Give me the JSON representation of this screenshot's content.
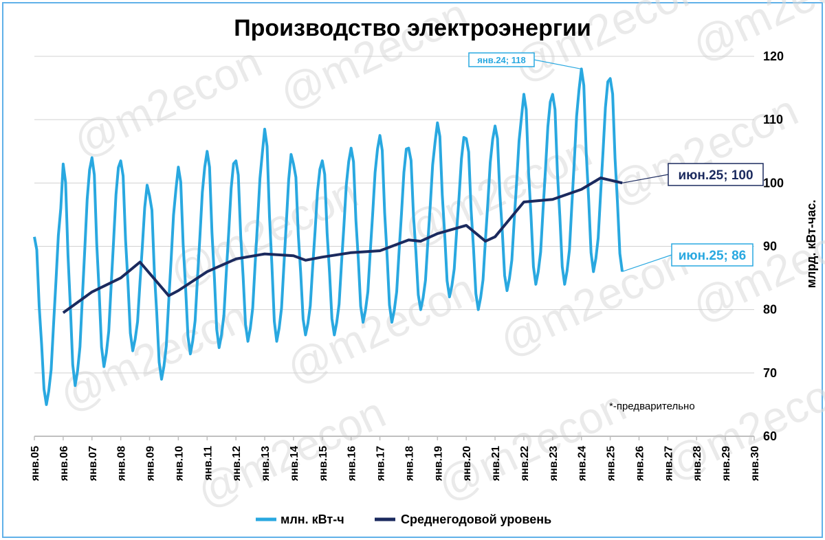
{
  "watermark": "@m2econ",
  "chart_data": {
    "type": "line",
    "title": "Производство электроэнергии",
    "ylabel": "млрд. кВт-час.",
    "ylim": [
      60,
      120
    ],
    "yticks": [
      "60",
      "70",
      "80",
      "90",
      "100",
      "110",
      "120"
    ],
    "xlim": [
      2005,
      2030
    ],
    "xticks": [
      "янв.05",
      "янв.06",
      "янв.07",
      "янв.08",
      "янв.09",
      "янв.10",
      "янв.11",
      "янв.12",
      "янв.13",
      "янв.14",
      "янв.15",
      "янв.16",
      "янв.17",
      "янв.18",
      "янв.19",
      "янв.20",
      "янв.21",
      "янв.22",
      "янв.23",
      "янв.24",
      "янв.25",
      "янв.26",
      "янв.27",
      "янв.28",
      "янв.29",
      "янв.30"
    ],
    "grid": true,
    "legend_position": "bottom",
    "note": "*-предварительно",
    "series": [
      {
        "name": "млн. кВт-ч",
        "color": "#29a8e0",
        "start_year": 2005,
        "monthly_jan": [
          91.5,
          103,
          104,
          103.5,
          98,
          102.5,
          105,
          103.5,
          108.5,
          103,
          103.5,
          105.5,
          107.5,
          105.5,
          109.5,
          107,
          109,
          114,
          114,
          118,
          116.5
        ],
        "monthly_jun": [
          65,
          68,
          71,
          73.5,
          69,
          73,
          74,
          75,
          75,
          76,
          76,
          78,
          78,
          80,
          82,
          80,
          83,
          84,
          84,
          86,
          86
        ],
        "partial_last_year_months": 6
      },
      {
        "name": "Среднегодовой уровень",
        "color": "#1b2a5e",
        "points": [
          [
            "2006-01",
            79.5
          ],
          [
            "2007-01",
            82.8
          ],
          [
            "2008-01",
            85
          ],
          [
            "2008-09",
            87.5
          ],
          [
            "2009-09",
            82.2
          ],
          [
            "2010-01",
            83
          ],
          [
            "2011-01",
            86
          ],
          [
            "2012-01",
            88
          ],
          [
            "2013-01",
            88.8
          ],
          [
            "2014-01",
            88.5
          ],
          [
            "2014-06",
            87.8
          ],
          [
            "2015-01",
            88.3
          ],
          [
            "2016-01",
            89
          ],
          [
            "2017-01",
            89.3
          ],
          [
            "2018-01",
            91
          ],
          [
            "2018-06",
            90.8
          ],
          [
            "2019-01",
            92
          ],
          [
            "2020-01",
            93.3
          ],
          [
            "2020-09",
            90.8
          ],
          [
            "2021-01",
            91.5
          ],
          [
            "2022-01",
            97
          ],
          [
            "2023-01",
            97.4
          ],
          [
            "2024-01",
            99
          ],
          [
            "2024-09",
            100.8
          ],
          [
            "2025-06",
            100
          ]
        ]
      }
    ],
    "annotations": [
      {
        "text": "янв.24; 118",
        "point": [
          "2024-01",
          118
        ],
        "series": "млн. кВт-ч",
        "style": "light-small"
      },
      {
        "text": "июн.25;   100",
        "point": [
          "2025-06",
          100
        ],
        "series": "Среднегодовой уровень",
        "style": "dark"
      },
      {
        "text": "июн.25; 86",
        "point": [
          "2025-06",
          86
        ],
        "series": "млн. кВт-ч",
        "style": "light"
      }
    ]
  }
}
